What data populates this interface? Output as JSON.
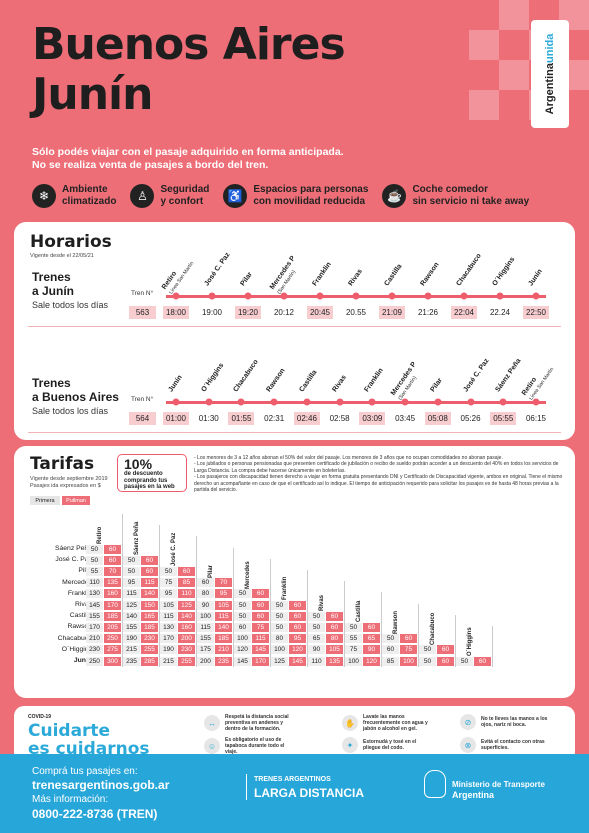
{
  "header": {
    "title_line1": "Buenos Aires",
    "title_line2": "Junín",
    "brand_a": "Argentina",
    "brand_b": "unida",
    "notice_line1": "Sólo podés viajar con el pasaje adquirido en forma anticipada.",
    "notice_line2": "No se realiza venta de pasajes a bordo del tren."
  },
  "features": [
    {
      "icon": "snowflake-icon",
      "glyph": "❄",
      "line1": "Ambiente",
      "line2": "climatizado"
    },
    {
      "icon": "seat-icon",
      "glyph": "♙",
      "line1": "Seguridad",
      "line2": "y confort"
    },
    {
      "icon": "wheelchair-icon",
      "glyph": "♿",
      "line1": "Espacios para personas",
      "line2": "con movilidad reducida"
    },
    {
      "icon": "dining-car-icon",
      "glyph": "☕",
      "line1": "Coche comedor",
      "line2": "sin servicio ni take away"
    }
  ],
  "horarios": {
    "title": "Horarios",
    "valid": "Vigente desde el 22/05/21",
    "tren_label": "Tren N°",
    "routes": [
      {
        "name_line1": "Trenes",
        "name_line2": "a Junín",
        "sub": "Sale todos los días",
        "train": "563",
        "stations": [
          {
            "name": "Retiro",
            "sub": "Línea San Martín",
            "time": "18:00",
            "hl": true
          },
          {
            "name": "José C. Paz",
            "sub": "",
            "time": "19:00",
            "hl": false
          },
          {
            "name": "Pilar",
            "sub": "",
            "time": "19:20",
            "hl": true
          },
          {
            "name": "Mercedes P",
            "sub": "(San Martín)",
            "time": "20:12",
            "hl": false
          },
          {
            "name": "Franklin",
            "sub": "",
            "time": "20:45",
            "hl": true
          },
          {
            "name": "Rivas",
            "sub": "",
            "time": "20.55",
            "hl": false
          },
          {
            "name": "Castilla",
            "sub": "",
            "time": "21:09",
            "hl": true
          },
          {
            "name": "Rawson",
            "sub": "",
            "time": "21:26",
            "hl": false
          },
          {
            "name": "Chacabuco",
            "sub": "",
            "time": "22:04",
            "hl": true
          },
          {
            "name": "O´Higgins",
            "sub": "",
            "time": "22.24",
            "hl": false
          },
          {
            "name": "Junín",
            "sub": "",
            "time": "22:50",
            "hl": true
          }
        ]
      },
      {
        "name_line1": "Trenes",
        "name_line2": "a Buenos Aires",
        "sub": "Sale todos los días",
        "train": "564",
        "stations": [
          {
            "name": "Junín",
            "sub": "",
            "time": "01:00",
            "hl": true
          },
          {
            "name": "O´Higgins",
            "sub": "",
            "time": "01:30",
            "hl": false
          },
          {
            "name": "Chacabuco",
            "sub": "",
            "time": "01:55",
            "hl": true
          },
          {
            "name": "Rawson",
            "sub": "",
            "time": "02:31",
            "hl": false
          },
          {
            "name": "Castilla",
            "sub": "",
            "time": "02:46",
            "hl": true
          },
          {
            "name": "Rivas",
            "sub": "",
            "time": "02:58",
            "hl": false
          },
          {
            "name": "Franklin",
            "sub": "",
            "time": "03:09",
            "hl": true
          },
          {
            "name": "Mercedes P",
            "sub": "(San Martín)",
            "time": "03:45",
            "hl": false
          },
          {
            "name": "Pilar",
            "sub": "",
            "time": "05:08",
            "hl": true
          },
          {
            "name": "José C. Paz",
            "sub": "",
            "time": "05:26",
            "hl": false
          },
          {
            "name": "Sáenz Peña",
            "sub": "",
            "time": "05:55",
            "hl": true
          },
          {
            "name": "Retiro",
            "sub": "Línea San Martín",
            "time": "06:15",
            "hl": false
          }
        ]
      }
    ]
  },
  "tarifas": {
    "title": "Tarifas",
    "valid_line1": "Vigente desde septiembre 2019",
    "valid_line2": "Pasajes ida expresados en $",
    "legend_primera": "Primera",
    "legend_pullman": "Pullman",
    "discount_pct": "10%",
    "discount_line1": "de descuento",
    "discount_line2": "comprando tus",
    "discount_line3": "pasajes en la web",
    "notes": [
      "- Los menores de 3 a 12 años abonan el 50% del valor del pasaje. Los menores de 3 años que no ocupan comodidades no abonan pasaje.",
      "- Los jubilados o personas pensionadas que presenten certificado de jubilación o recibo de sueldo podrán acceder a un descuento del 40% en todos los servicios de Larga Distancia. La compra debe hacerse únicamente en boleterías.",
      "- Los pasajeros con discapacidad tienen derecho a viajar en forma gratuita presentando DNI y Certificado de Discapacidad vigente, ambos en original. Tiene el mismo derecho un acompañante en caso de que el certificado así lo indique. El tiempo de anticipación requerido para solicitar los pasajes es de hasta 48 horas previas a la partida del servicio."
    ],
    "columns": [
      "Retiro",
      "Sáenz Peña",
      "José C. Paz",
      "Pilar",
      "Mercedes",
      "Franklin",
      "Rivas",
      "Castilla",
      "Rawson",
      "Chacabuco",
      "O´Higgins"
    ],
    "rows": [
      {
        "name": "Sáenz Peña",
        "cells": [
          [
            "50",
            "60"
          ]
        ]
      },
      {
        "name": "José C. Paz",
        "cells": [
          [
            "50",
            "60"
          ],
          [
            "50",
            "60"
          ]
        ]
      },
      {
        "name": "Pilar",
        "cells": [
          [
            "55",
            "70"
          ],
          [
            "50",
            "60"
          ],
          [
            "50",
            "60"
          ]
        ]
      },
      {
        "name": "Mercedes",
        "cells": [
          [
            "110",
            "135"
          ],
          [
            "95",
            "115"
          ],
          [
            "75",
            "85"
          ],
          [
            "60",
            "70"
          ]
        ]
      },
      {
        "name": "Franklin",
        "cells": [
          [
            "130",
            "160"
          ],
          [
            "115",
            "140"
          ],
          [
            "95",
            "110"
          ],
          [
            "80",
            "95"
          ],
          [
            "50",
            "60"
          ]
        ]
      },
      {
        "name": "Rivas",
        "cells": [
          [
            "145",
            "170"
          ],
          [
            "125",
            "150"
          ],
          [
            "105",
            "125"
          ],
          [
            "90",
            "105"
          ],
          [
            "50",
            "60"
          ],
          [
            "50",
            "60"
          ]
        ]
      },
      {
        "name": "Castilla",
        "cells": [
          [
            "155",
            "185"
          ],
          [
            "140",
            "165"
          ],
          [
            "115",
            "140"
          ],
          [
            "100",
            "115"
          ],
          [
            "50",
            "60"
          ],
          [
            "50",
            "60"
          ],
          [
            "50",
            "60"
          ]
        ]
      },
      {
        "name": "Rawson",
        "cells": [
          [
            "170",
            "205"
          ],
          [
            "155",
            "185"
          ],
          [
            "130",
            "160"
          ],
          [
            "115",
            "140"
          ],
          [
            "60",
            "75"
          ],
          [
            "50",
            "60"
          ],
          [
            "50",
            "60"
          ],
          [
            "50",
            "60"
          ]
        ]
      },
      {
        "name": "Chacabuco",
        "cells": [
          [
            "210",
            "250"
          ],
          [
            "190",
            "230"
          ],
          [
            "170",
            "200"
          ],
          [
            "155",
            "185"
          ],
          [
            "100",
            "115"
          ],
          [
            "80",
            "95"
          ],
          [
            "65",
            "80"
          ],
          [
            "55",
            "65"
          ],
          [
            "50",
            "60"
          ]
        ]
      },
      {
        "name": "O´Higgins",
        "cells": [
          [
            "230",
            "275"
          ],
          [
            "215",
            "255"
          ],
          [
            "190",
            "230"
          ],
          [
            "175",
            "210"
          ],
          [
            "120",
            "145"
          ],
          [
            "100",
            "120"
          ],
          [
            "90",
            "105"
          ],
          [
            "75",
            "90"
          ],
          [
            "60",
            "75"
          ],
          [
            "50",
            "60"
          ]
        ]
      },
      {
        "name": "Junín",
        "cells": [
          [
            "250",
            "300"
          ],
          [
            "235",
            "285"
          ],
          [
            "215",
            "255"
          ],
          [
            "200",
            "235"
          ],
          [
            "145",
            "170"
          ],
          [
            "125",
            "145"
          ],
          [
            "110",
            "135"
          ],
          [
            "100",
            "120"
          ],
          [
            "85",
            "100"
          ],
          [
            "50",
            "60"
          ],
          [
            "50",
            "60"
          ]
        ]
      }
    ]
  },
  "covid": {
    "label": "COVID-19",
    "title_line1": "Cuidarte",
    "title_line2": "es cuidarnos",
    "tips": [
      {
        "icon": "distance-icon",
        "glyph": "↔",
        "text": "Respetá la distancia social preventiva en andenes y dentro de la formación."
      },
      {
        "icon": "handwash-icon",
        "glyph": "✋",
        "text": "Lavate las manos frecuentemente con agua y jabón o alcohol en gel."
      },
      {
        "icon": "no-face-touch-icon",
        "glyph": "⊘",
        "text": "No te lleves las manos a los ojos, nariz ni boca."
      },
      {
        "icon": "mask-icon",
        "glyph": "☺",
        "text": "Es obligatorio el uso de tapaboca durante todo el viaje."
      },
      {
        "icon": "sneeze-icon",
        "glyph": "✦",
        "text": "Estornudá y tosé en el pliegue del codo."
      },
      {
        "icon": "no-contact-icon",
        "glyph": "⊗",
        "text": "Evitá el contacto con otras superficies."
      }
    ]
  },
  "footer": {
    "buy_label": "Comprá tus pasajes en:",
    "buy_url": "trenesargentinos.gob.ar",
    "info_label": "Más información:",
    "phone": "0800-222-8736 (TREN)",
    "brand_line1": "TRENES ARGENTINOS",
    "brand_line2": "LARGA DISTANCIA",
    "ministry_line1": "Ministerio de Transporte",
    "ministry_line2": "Argentina"
  }
}
